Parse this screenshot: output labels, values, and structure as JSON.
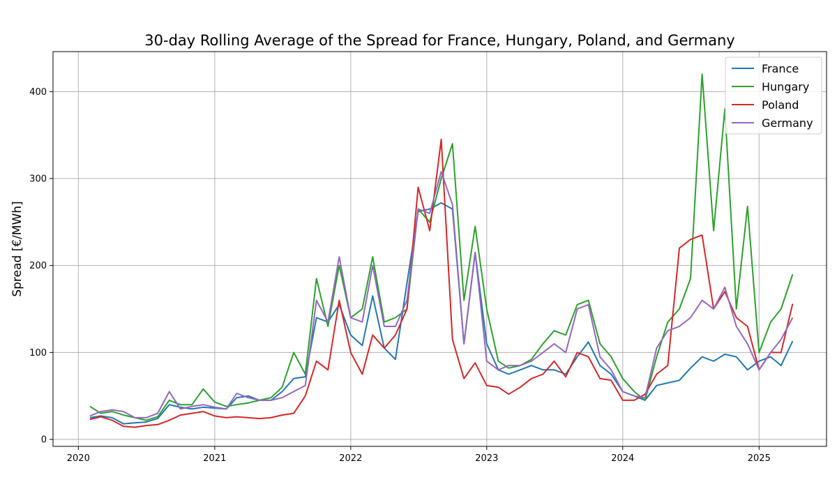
{
  "chart_data": {
    "type": "line",
    "title": "30-day Rolling Average of the Spread for France, Hungary, Poland, and Germany",
    "xlabel": "",
    "ylabel": "Spread [€/MWh]",
    "x_ticks": [
      "2020",
      "2021",
      "2022",
      "2023",
      "2024",
      "2025"
    ],
    "y_ticks": [
      0,
      100,
      200,
      300,
      400
    ],
    "xlim": [
      "2019-10-25",
      "2025-07-01"
    ],
    "ylim": [
      -8,
      446
    ],
    "grid": true,
    "legend_position": "top-right",
    "x": [
      "2020-02-01",
      "2020-03-01",
      "2020-04-01",
      "2020-05-01",
      "2020-06-01",
      "2020-07-01",
      "2020-08-01",
      "2020-09-01",
      "2020-10-01",
      "2020-11-01",
      "2020-12-01",
      "2021-01-01",
      "2021-02-01",
      "2021-03-01",
      "2021-04-01",
      "2021-05-01",
      "2021-06-01",
      "2021-07-01",
      "2021-08-01",
      "2021-09-01",
      "2021-10-01",
      "2021-11-01",
      "2021-12-01",
      "2022-01-01",
      "2022-02-01",
      "2022-03-01",
      "2022-04-01",
      "2022-05-01",
      "2022-06-01",
      "2022-07-01",
      "2022-08-01",
      "2022-09-01",
      "2022-10-01",
      "2022-11-01",
      "2022-12-01",
      "2023-01-01",
      "2023-02-01",
      "2023-03-01",
      "2023-04-01",
      "2023-05-01",
      "2023-06-01",
      "2023-07-01",
      "2023-08-01",
      "2023-09-01",
      "2023-10-01",
      "2023-11-01",
      "2023-12-01",
      "2024-01-01",
      "2024-02-01",
      "2024-03-01",
      "2024-04-01",
      "2024-05-01",
      "2024-06-01",
      "2024-07-01",
      "2024-08-01",
      "2024-09-01",
      "2024-10-01",
      "2024-11-01",
      "2024-12-01",
      "2025-01-01",
      "2025-02-01",
      "2025-03-01",
      "2025-04-01"
    ],
    "series": [
      {
        "name": "France",
        "color": "#1f77b4",
        "values": [
          25,
          27,
          25,
          18,
          19,
          20,
          24,
          40,
          37,
          35,
          37,
          36,
          35,
          48,
          50,
          45,
          45,
          55,
          70,
          72,
          140,
          135,
          155,
          120,
          108,
          165,
          105,
          92,
          180,
          262,
          265,
          272,
          265,
          110,
          215,
          110,
          80,
          75,
          80,
          85,
          80,
          80,
          75,
          95,
          112,
          85,
          75,
          55,
          50,
          45,
          62,
          65,
          68,
          82,
          95,
          90,
          98,
          95,
          80,
          90,
          95,
          85,
          113
        ]
      },
      {
        "name": "Hungary",
        "color": "#2ca02c",
        "values": [
          38,
          30,
          32,
          28,
          25,
          22,
          26,
          45,
          40,
          40,
          58,
          43,
          38,
          40,
          42,
          45,
          48,
          60,
          100,
          75,
          185,
          130,
          200,
          140,
          150,
          210,
          135,
          140,
          150,
          265,
          250,
          300,
          340,
          160,
          245,
          150,
          90,
          82,
          85,
          92,
          110,
          125,
          120,
          155,
          160,
          110,
          95,
          70,
          55,
          45,
          95,
          135,
          150,
          185,
          420,
          240,
          380,
          150,
          268,
          100,
          135,
          150,
          190
        ]
      },
      {
        "name": "Poland",
        "color": "#d62728",
        "values": [
          23,
          26,
          22,
          15,
          14,
          16,
          17,
          22,
          28,
          30,
          32,
          27,
          25,
          26,
          25,
          24,
          25,
          28,
          30,
          50,
          90,
          80,
          160,
          100,
          75,
          120,
          105,
          120,
          150,
          290,
          240,
          345,
          115,
          70,
          88,
          62,
          60,
          52,
          60,
          70,
          75,
          90,
          72,
          100,
          95,
          70,
          68,
          45,
          45,
          52,
          75,
          85,
          220,
          230,
          235,
          150,
          170,
          140,
          130,
          80,
          100,
          100,
          156
        ]
      },
      {
        "name": "Germany",
        "color": "#9467bd",
        "values": [
          27,
          32,
          34,
          32,
          25,
          25,
          30,
          55,
          35,
          38,
          40,
          37,
          35,
          53,
          48,
          45,
          45,
          48,
          55,
          62,
          160,
          135,
          210,
          140,
          135,
          200,
          130,
          130,
          160,
          265,
          260,
          308,
          270,
          110,
          215,
          90,
          80,
          85,
          85,
          90,
          100,
          110,
          100,
          150,
          155,
          95,
          80,
          55,
          50,
          48,
          105,
          125,
          130,
          140,
          160,
          150,
          175,
          130,
          110,
          80,
          100,
          115,
          140
        ]
      }
    ]
  }
}
